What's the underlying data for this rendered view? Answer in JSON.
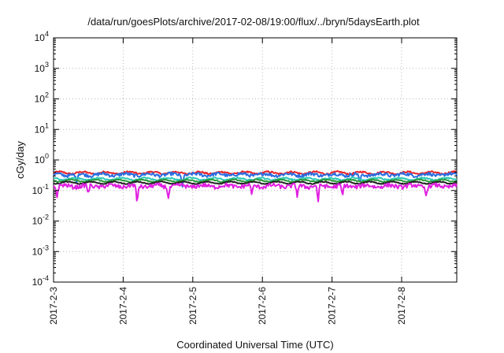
{
  "chart_data": {
    "type": "line",
    "title": "/data/run/goesPlots/archive/2017-02-08/19:00/flux/../bryn/5daysEarth.plot",
    "xlabel": "Coordinated Universal Time (UTC)",
    "ylabel": "cGy/day",
    "y_scale": "log",
    "ylim": [
      0.0001,
      10000
    ],
    "y_ticks": [
      {
        "base": "10",
        "exp": "-4"
      },
      {
        "base": "10",
        "exp": "-3"
      },
      {
        "base": "10",
        "exp": "-2"
      },
      {
        "base": "10",
        "exp": "-1"
      },
      {
        "base": "10",
        "exp": "0"
      },
      {
        "base": "10",
        "exp": "1"
      },
      {
        "base": "10",
        "exp": "2"
      },
      {
        "base": "10",
        "exp": "3"
      },
      {
        "base": "10",
        "exp": "4"
      }
    ],
    "xlim": [
      "2017-02-03 00:00",
      "2017-02-08 19:00"
    ],
    "x_ticks": [
      "2017-2-3",
      "2017-2-4",
      "2017-2-5",
      "2017-2-6",
      "2017-2-7",
      "2017-2-8"
    ],
    "grid": true,
    "series": [
      {
        "color": "#e8232a",
        "level": 0.38,
        "spread": 0.06,
        "dips": []
      },
      {
        "color": "#2b6ee0",
        "level": 0.33,
        "spread": 0.12,
        "dips": [
          {
            "day": 0.33,
            "depth": 0.5
          },
          {
            "day": 1.85,
            "depth": 0.45
          },
          {
            "day": 4.4,
            "depth": 0.45
          }
        ]
      },
      {
        "color": "#2ec9b8",
        "level": 0.24,
        "spread": 0.05,
        "dips": []
      },
      {
        "color": "#2a9a3a",
        "level": 0.21,
        "spread": 0.04,
        "dips": []
      },
      {
        "color": "#222222",
        "level": 0.18,
        "spread": 0.03,
        "dips": []
      },
      {
        "color": "#e020e0",
        "level": 0.14,
        "spread": 0.15,
        "dips": [
          {
            "day": 0.05,
            "depth": 0.45
          },
          {
            "day": 0.5,
            "depth": 0.5
          },
          {
            "day": 1.2,
            "depth": 0.18
          },
          {
            "day": 1.65,
            "depth": 0.4
          },
          {
            "day": 2.85,
            "depth": 0.5
          },
          {
            "day": 3.5,
            "depth": 0.45
          },
          {
            "day": 3.8,
            "depth": 0.25
          },
          {
            "day": 4.15,
            "depth": 0.4
          },
          {
            "day": 5.35,
            "depth": 0.5
          }
        ]
      }
    ]
  }
}
